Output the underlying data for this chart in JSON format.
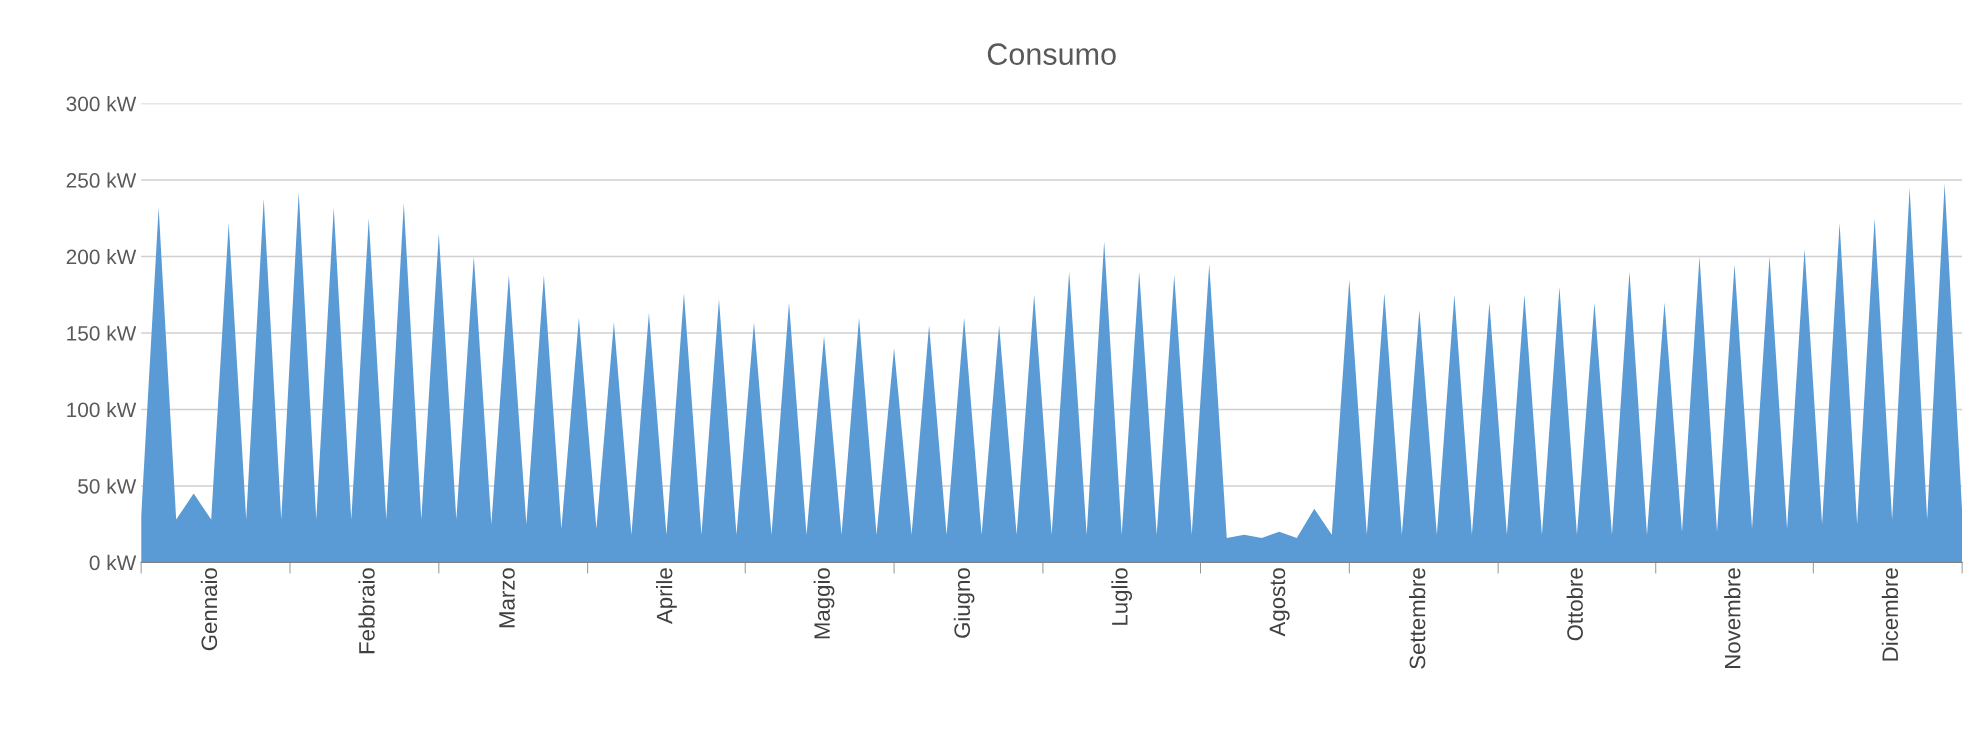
{
  "chart_data": {
    "type": "area",
    "title": "Consumo",
    "categories": [
      null,
      null,
      null,
      null,
      "Gennaio",
      null,
      null,
      null,
      null,
      null,
      null,
      null,
      null,
      "Febbraio",
      null,
      null,
      null,
      null,
      null,
      null,
      null,
      "Marzo",
      null,
      null,
      null,
      null,
      null,
      null,
      null,
      null,
      "Aprile",
      null,
      null,
      null,
      null,
      null,
      null,
      null,
      null,
      "Maggio",
      null,
      null,
      null,
      null,
      null,
      null,
      null,
      "Giugno",
      null,
      null,
      null,
      null,
      null,
      null,
      null,
      null,
      "Luglio",
      null,
      null,
      null,
      null,
      null,
      null,
      null,
      null,
      "Agosto",
      null,
      null,
      null,
      null,
      null,
      null,
      null,
      "Settembre",
      null,
      null,
      null,
      null,
      null,
      null,
      null,
      null,
      "Ottobre",
      null,
      null,
      null,
      null,
      null,
      null,
      null,
      null,
      "Novembre",
      null,
      null,
      null,
      null,
      null,
      null,
      null,
      null,
      "Dicembre",
      null,
      null,
      null,
      null
    ],
    "series": [
      {
        "color": "#5b9bd5",
        "values": [
          30,
          232,
          28,
          45,
          28,
          222,
          28,
          238,
          28,
          242,
          28,
          232,
          28,
          225,
          28,
          235,
          28,
          215,
          28,
          200,
          25,
          188,
          25,
          188,
          22,
          160,
          22,
          157,
          18,
          163,
          18,
          176,
          18,
          172,
          18,
          157,
          18,
          170,
          18,
          148,
          18,
          160,
          18,
          140,
          18,
          155,
          18,
          160,
          18,
          155,
          18,
          175,
          18,
          190,
          18,
          210,
          18,
          190,
          18,
          188,
          18,
          195,
          16,
          18,
          16,
          20,
          16,
          35,
          18,
          185,
          18,
          176,
          18,
          165,
          18,
          175,
          18,
          170,
          18,
          175,
          18,
          180,
          18,
          170,
          18,
          190,
          18,
          170,
          20,
          200,
          20,
          195,
          22,
          200,
          22,
          205,
          25,
          222,
          25,
          225,
          28,
          245,
          28,
          248,
          33
        ]
      }
    ],
    "ylim": [
      0,
      300
    ],
    "yticks": [
      {
        "value": 0,
        "label": "0 kW"
      },
      {
        "value": 50,
        "label": "50 kW"
      },
      {
        "value": 100,
        "label": "100 kW"
      },
      {
        "value": 150,
        "label": "150 kW"
      },
      {
        "value": 200,
        "label": "200 kW"
      },
      {
        "value": 250,
        "label": "250 kW"
      },
      {
        "value": 300,
        "label": "300 kW"
      }
    ],
    "grid": "y",
    "legend": false
  }
}
